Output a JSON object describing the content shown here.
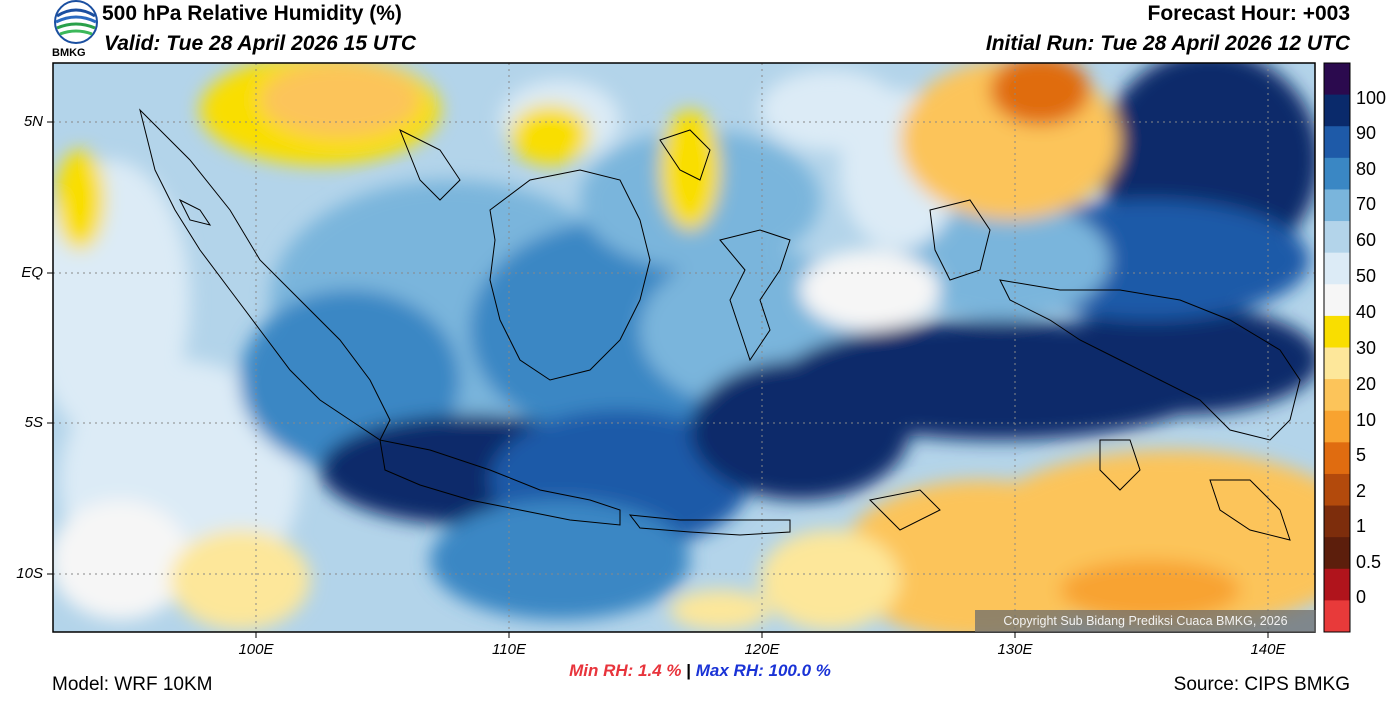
{
  "header": {
    "title": "500 hPa Relative Humidity (%)",
    "valid": "Valid: Tue 28 April 2026 15 UTC",
    "forecast_hour": "Forecast Hour: +003",
    "initial_run": "Initial Run: Tue 28 April 2026 12 UTC",
    "agency_logo": "BMKG"
  },
  "map": {
    "lat_labels": [
      "5N",
      "EQ",
      "5S",
      "10S"
    ],
    "lon_labels": [
      "100E",
      "110E",
      "120E",
      "130E",
      "140E"
    ],
    "copyright": "Copyright Sub Bidang Prediksi Cuaca BMKG, 2026"
  },
  "colorbar": {
    "labels": [
      "100",
      "90",
      "80",
      "70",
      "60",
      "50",
      "40",
      "30",
      "20",
      "10",
      "5",
      "2",
      "1",
      "0.5",
      "0"
    ],
    "colors": [
      "#2b0a4e",
      "#0a2a6b",
      "#1e5aa8",
      "#3a87c4",
      "#7ab5dc",
      "#b3d4ea",
      "#dcebf6",
      "#f6f6f6",
      "#f9de00",
      "#fde79a",
      "#fcc45a",
      "#f8a330",
      "#e06c10",
      "#b34a0c",
      "#7d2d0c",
      "#5c1e0c",
      "#b0141c",
      "#e83a3a"
    ]
  },
  "stats": {
    "min_label": "Min RH:",
    "min_value": "1.4 %",
    "max_label": "Max RH:",
    "max_value": "100.0 %"
  },
  "footer": {
    "model": "Model: WRF 10KM",
    "source": "Source: CIPS BMKG"
  }
}
